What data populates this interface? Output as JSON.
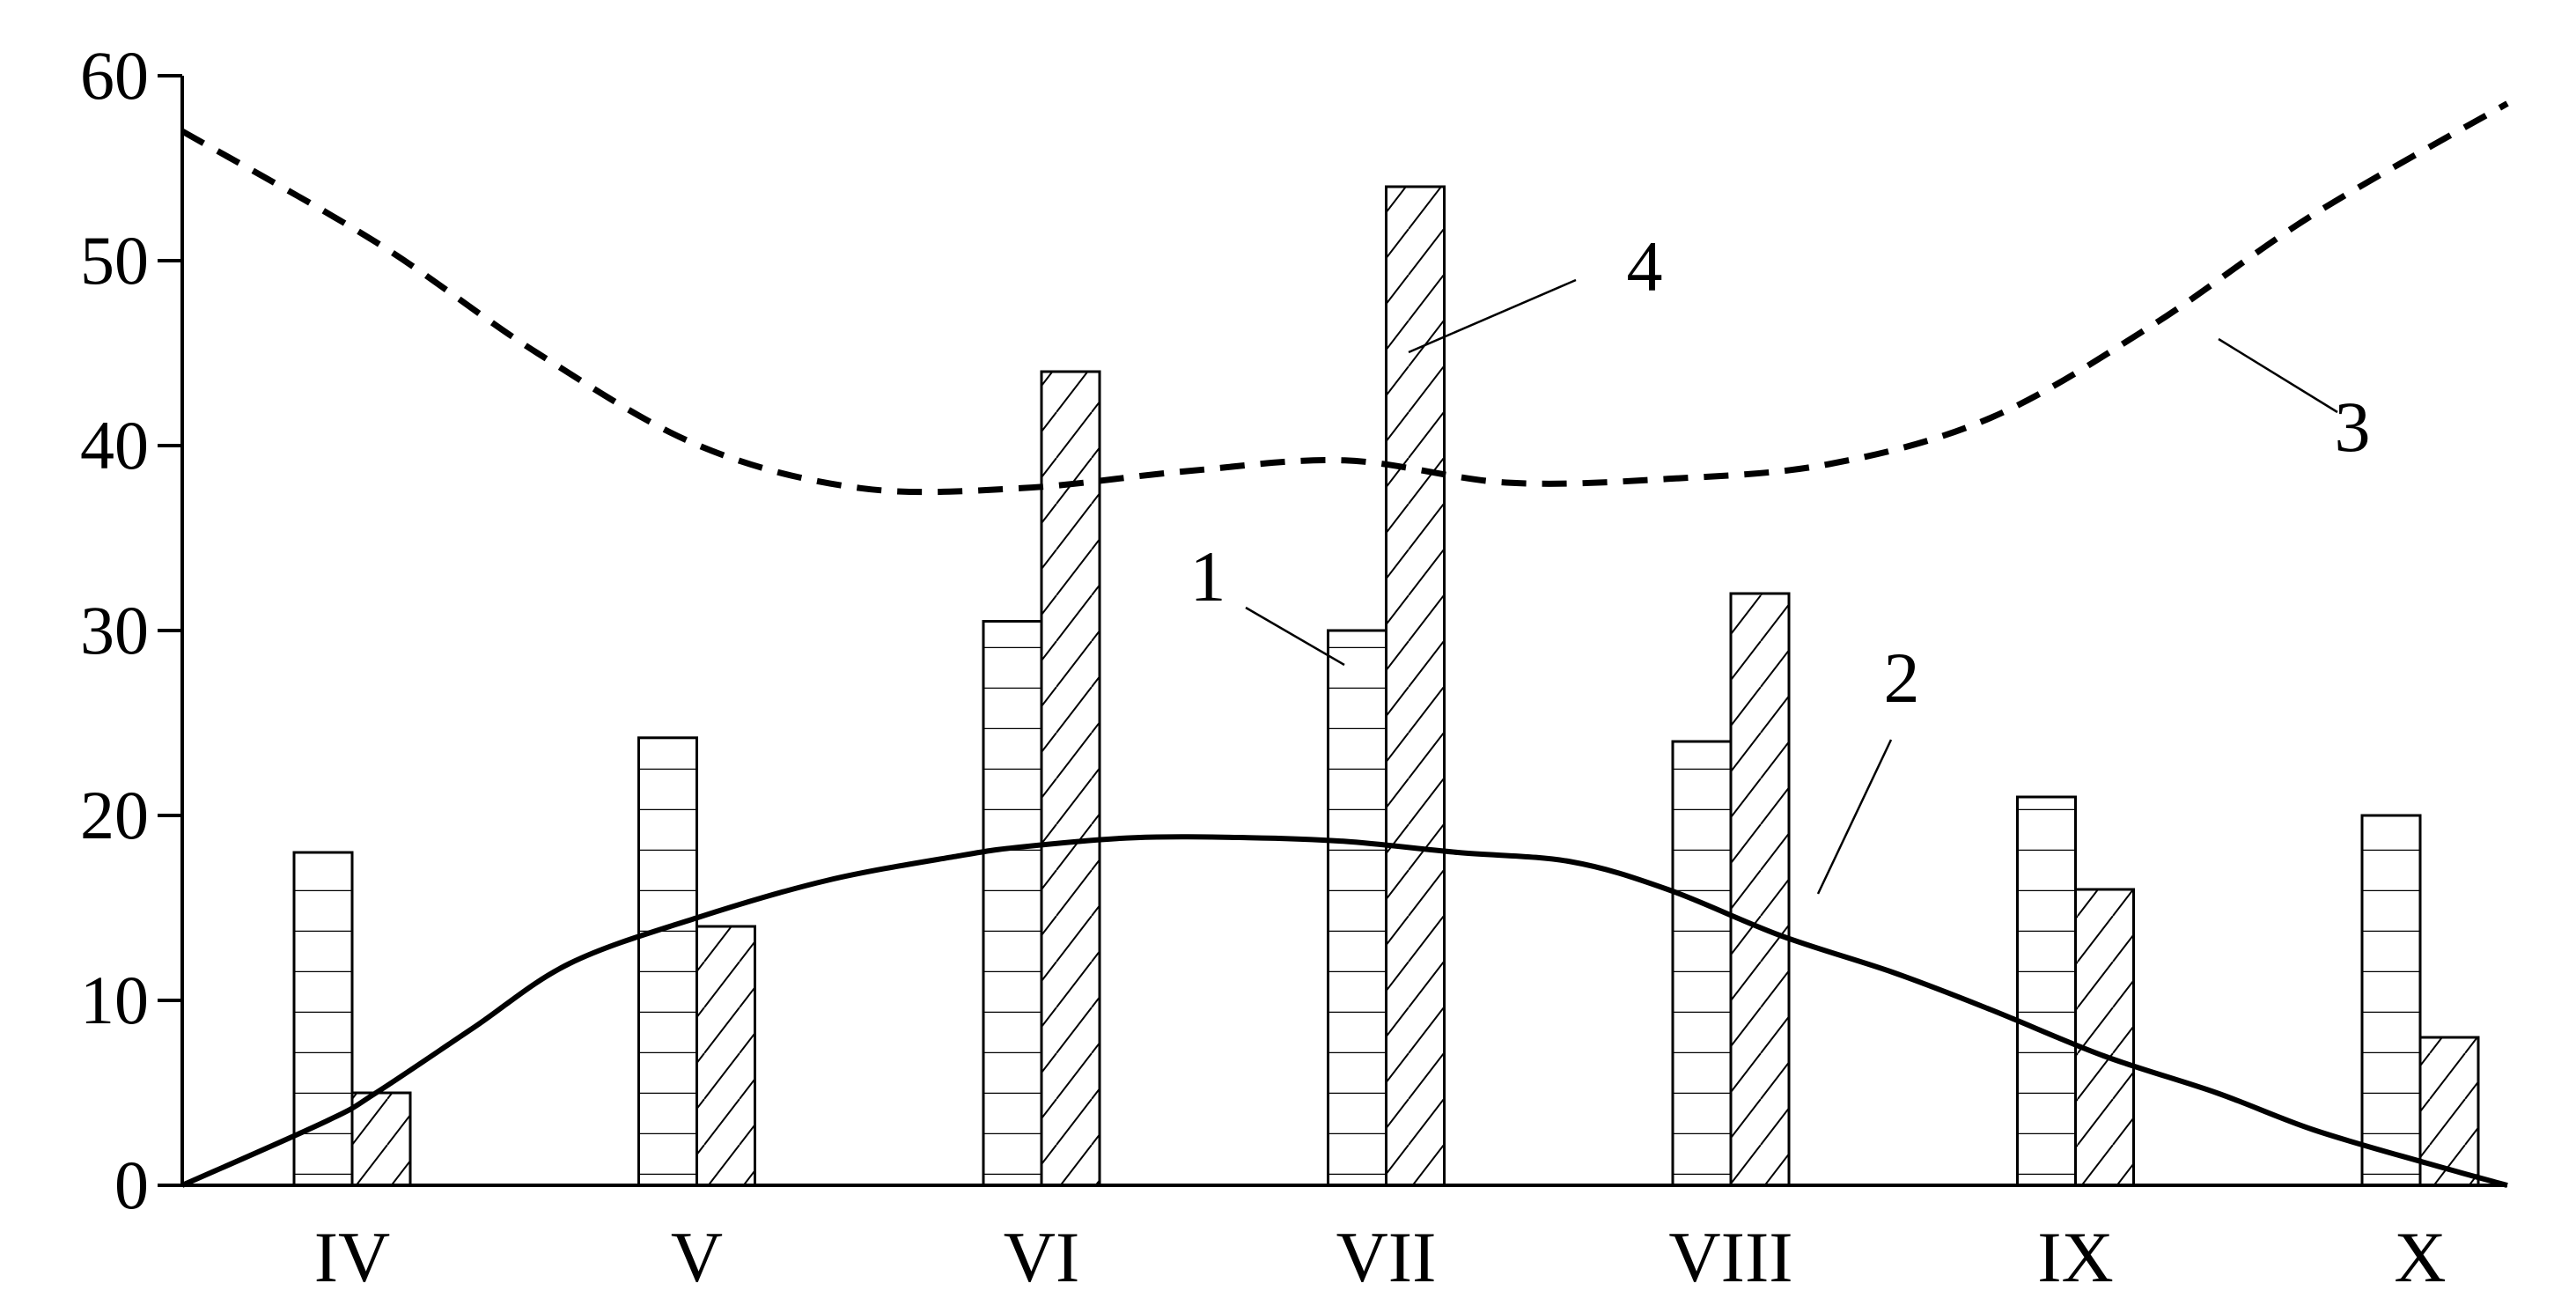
{
  "chart_data": {
    "type": "bar",
    "title": "",
    "xlabel": "",
    "ylabel": "",
    "ylim": [
      0,
      60
    ],
    "yticks": [
      0,
      10,
      20,
      30,
      40,
      50,
      60
    ],
    "grid": false,
    "legend": "none",
    "categories": [
      "IV",
      "V",
      "VI",
      "VII",
      "VIII",
      "IX",
      "X"
    ],
    "series": [
      {
        "id": "1",
        "kind": "bar",
        "pattern": "horizontal-hatch",
        "values": [
          18,
          24.2,
          30.5,
          30,
          24,
          21,
          20
        ]
      },
      {
        "id": "4",
        "kind": "bar",
        "pattern": "diagonal-hatch",
        "values": [
          5,
          14,
          44,
          54,
          32,
          16,
          8
        ]
      },
      {
        "id": "2",
        "kind": "line",
        "style": "solid",
        "x": [
          3.4,
          3.85,
          4.0,
          4.3,
          4.6,
          5.0,
          5.4,
          5.8,
          6.0,
          6.35,
          6.7,
          7.0,
          7.35,
          7.7,
          8.0,
          8.35,
          8.7,
          9.0,
          9.35,
          9.7,
          10.0,
          10.35,
          10.6
        ],
        "y": [
          0,
          3.5,
          5,
          8.5,
          12,
          14.5,
          16.5,
          17.8,
          18.3,
          18.8,
          18.8,
          18.6,
          18.0,
          17.5,
          16.0,
          13.5,
          11.5,
          9.5,
          7.0,
          5.0,
          3.0,
          1.2,
          0
        ]
      },
      {
        "id": "3",
        "kind": "line",
        "style": "dashed",
        "x": [
          3.4,
          4.0,
          4.5,
          5.0,
          5.5,
          6.0,
          6.5,
          7.0,
          7.5,
          8.0,
          8.5,
          9.0,
          9.5,
          10.0,
          10.6
        ],
        "y": [
          57,
          51,
          45,
          40,
          37.7,
          37.7,
          38.6,
          39.2,
          38.0,
          38.2,
          39.0,
          41.5,
          46.5,
          52.5,
          58.5
        ]
      }
    ],
    "annotations": [
      {
        "text": "1",
        "series": "1"
      },
      {
        "text": "2",
        "series": "2"
      },
      {
        "text": "3",
        "series": "3"
      },
      {
        "text": "4",
        "series": "4"
      }
    ]
  }
}
